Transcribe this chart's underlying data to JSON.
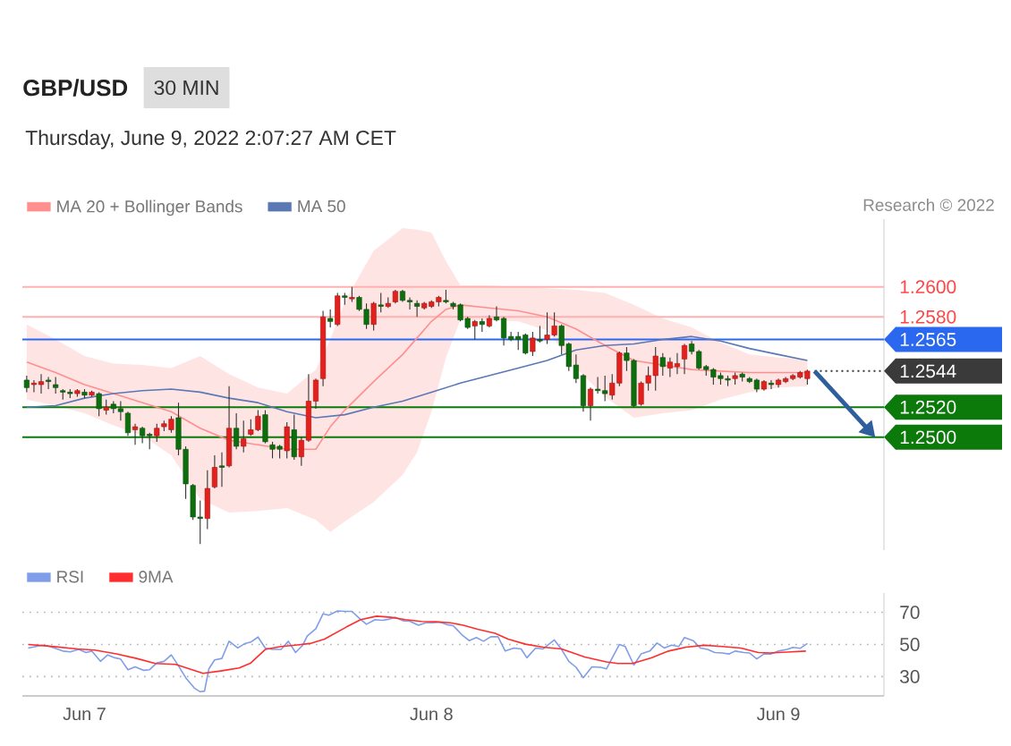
{
  "chart_data": [
    {
      "type": "candlestick",
      "title": "GBP/USD",
      "subtitle": "Thursday, June 9, 2022 2:07:27 AM CET",
      "annotations": [
        "30 MIN",
        "Research © 2022"
      ],
      "x": [
        "2022-06-06T20:00",
        "2022-06-06T20:30",
        "2022-06-06T21:00",
        "2022-06-06T21:30",
        "2022-06-06T22:00",
        "2022-06-06T22:30",
        "2022-06-06T23:00",
        "2022-06-06T23:30",
        "2022-06-07T00:00",
        "2022-06-07T00:30",
        "2022-06-07T01:00",
        "2022-06-07T01:30",
        "2022-06-07T02:00",
        "2022-06-07T02:30",
        "2022-06-07T03:00",
        "2022-06-07T03:30",
        "2022-06-07T04:00",
        "2022-06-07T04:30",
        "2022-06-07T05:00",
        "2022-06-07T05:30",
        "2022-06-07T06:00",
        "2022-06-07T06:30",
        "2022-06-07T07:00",
        "2022-06-07T07:30",
        "2022-06-07T08:00",
        "2022-06-07T08:30",
        "2022-06-07T09:00",
        "2022-06-07T09:30",
        "2022-06-07T10:00",
        "2022-06-07T10:30",
        "2022-06-07T11:00",
        "2022-06-07T11:30",
        "2022-06-07T12:00",
        "2022-06-07T12:30",
        "2022-06-07T13:00",
        "2022-06-07T13:30",
        "2022-06-07T14:00",
        "2022-06-07T14:30",
        "2022-06-07T15:00",
        "2022-06-07T15:30",
        "2022-06-07T16:00",
        "2022-06-07T16:30",
        "2022-06-07T17:00",
        "2022-06-07T17:30",
        "2022-06-07T18:00",
        "2022-06-07T18:30",
        "2022-06-07T19:00",
        "2022-06-07T19:30",
        "2022-06-07T20:00",
        "2022-06-07T20:30",
        "2022-06-07T21:00",
        "2022-06-07T21:30",
        "2022-06-07T22:00",
        "2022-06-07T22:30",
        "2022-06-07T23:00",
        "2022-06-07T23:30",
        "2022-06-08T00:00",
        "2022-06-08T00:30",
        "2022-06-08T01:00",
        "2022-06-08T01:30",
        "2022-06-08T02:00",
        "2022-06-08T02:30",
        "2022-06-08T03:00",
        "2022-06-08T03:30",
        "2022-06-08T04:00",
        "2022-06-08T04:30",
        "2022-06-08T05:00",
        "2022-06-08T05:30",
        "2022-06-08T06:00",
        "2022-06-08T06:30",
        "2022-06-08T07:00",
        "2022-06-08T07:30",
        "2022-06-08T08:00",
        "2022-06-08T08:30",
        "2022-06-08T09:00",
        "2022-06-08T09:30",
        "2022-06-08T10:00",
        "2022-06-08T10:30",
        "2022-06-08T11:00",
        "2022-06-08T11:30",
        "2022-06-08T12:00",
        "2022-06-08T12:30",
        "2022-06-08T13:00",
        "2022-06-08T13:30",
        "2022-06-08T14:00",
        "2022-06-08T14:30",
        "2022-06-08T15:00",
        "2022-06-08T15:30",
        "2022-06-08T16:00",
        "2022-06-08T16:30",
        "2022-06-08T17:00",
        "2022-06-08T17:30",
        "2022-06-08T18:00",
        "2022-06-08T18:30",
        "2022-06-08T19:00",
        "2022-06-08T19:30",
        "2022-06-08T20:00",
        "2022-06-08T20:30",
        "2022-06-08T21:00",
        "2022-06-08T21:30",
        "2022-06-08T22:00",
        "2022-06-08T22:30",
        "2022-06-08T23:00",
        "2022-06-08T23:30",
        "2022-06-09T00:00",
        "2022-06-09T00:30",
        "2022-06-09T01:00",
        "2022-06-09T01:30",
        "2022-06-09T02:00"
      ],
      "ohlc": [
        [
          1.2538,
          1.2541,
          1.253,
          1.2533
        ],
        [
          1.2535,
          1.2538,
          1.253,
          1.2536
        ],
        [
          1.2535,
          1.2542,
          1.2529,
          1.2537
        ],
        [
          1.2538,
          1.254,
          1.2532,
          1.2537
        ],
        [
          1.2535,
          1.254,
          1.2529,
          1.2533
        ],
        [
          1.2531,
          1.2532,
          1.2525,
          1.253
        ],
        [
          1.253,
          1.2532,
          1.2526,
          1.2529
        ],
        [
          1.2529,
          1.2532,
          1.2527,
          1.2531
        ],
        [
          1.253,
          1.2532,
          1.2526,
          1.2528
        ],
        [
          1.2528,
          1.2531,
          1.2527,
          1.253
        ],
        [
          1.2529,
          1.253,
          1.2514,
          1.2519
        ],
        [
          1.2518,
          1.2525,
          1.2515,
          1.252
        ],
        [
          1.2522,
          1.2524,
          1.2516,
          1.2519
        ],
        [
          1.2519,
          1.2524,
          1.2511,
          1.2517
        ],
        [
          1.2516,
          1.2517,
          1.2501,
          1.2503
        ],
        [
          1.2505,
          1.2509,
          1.2495,
          1.2507
        ],
        [
          1.2506,
          1.2507,
          1.2496,
          1.2501
        ],
        [
          1.2502,
          1.2503,
          1.2492,
          1.2501
        ],
        [
          1.2501,
          1.2509,
          1.2497,
          1.2506
        ],
        [
          1.2507,
          1.2511,
          1.2504,
          1.2509
        ],
        [
          1.2505,
          1.2514,
          1.2503,
          1.2512
        ],
        [
          1.2513,
          1.2523,
          1.2488,
          1.2492
        ],
        [
          1.2492,
          1.2494,
          1.2459,
          1.2469
        ],
        [
          1.2468,
          1.2469,
          1.2445,
          1.2447
        ],
        [
          1.2447,
          1.2458,
          1.2429,
          1.2446
        ],
        [
          1.2446,
          1.2478,
          1.2439,
          1.2466
        ],
        [
          1.2467,
          1.2488,
          1.2466,
          1.248
        ],
        [
          1.2481,
          1.249,
          1.2467,
          1.248
        ],
        [
          1.2481,
          1.2534,
          1.248,
          1.2506
        ],
        [
          1.2506,
          1.2516,
          1.2492,
          1.2494
        ],
        [
          1.2494,
          1.2511,
          1.249,
          1.2499
        ],
        [
          1.2502,
          1.2512,
          1.2501,
          1.2505
        ],
        [
          1.2505,
          1.2518,
          1.2504,
          1.2514
        ],
        [
          1.2515,
          1.2518,
          1.2496,
          1.2497
        ],
        [
          1.2495,
          1.2497,
          1.2486,
          1.2492
        ],
        [
          1.2494,
          1.2495,
          1.2486,
          1.2492
        ],
        [
          1.2491,
          1.251,
          1.2486,
          1.2507
        ],
        [
          1.2505,
          1.2515,
          1.2485,
          1.2487
        ],
        [
          1.2487,
          1.25,
          1.2481,
          1.2498
        ],
        [
          1.2498,
          1.2542,
          1.2497,
          1.2524
        ],
        [
          1.2524,
          1.2539,
          1.2519,
          1.2538
        ],
        [
          1.2539,
          1.2584,
          1.2534,
          1.258
        ],
        [
          1.2579,
          1.2585,
          1.2573,
          1.2577
        ],
        [
          1.2575,
          1.2596,
          1.2574,
          1.2594
        ],
        [
          1.2594,
          1.2596,
          1.2588,
          1.2593
        ],
        [
          1.2592,
          1.26,
          1.259,
          1.2593
        ],
        [
          1.2593,
          1.2594,
          1.2584,
          1.2585
        ],
        [
          1.2585,
          1.2589,
          1.2572,
          1.2575
        ],
        [
          1.2575,
          1.259,
          1.2571,
          1.2589
        ],
        [
          1.2588,
          1.2596,
          1.2583,
          1.2587
        ],
        [
          1.2587,
          1.2593,
          1.2586,
          1.2589
        ],
        [
          1.259,
          1.2598,
          1.2589,
          1.2597
        ],
        [
          1.2597,
          1.2598,
          1.259,
          1.2591
        ],
        [
          1.2591,
          1.2593,
          1.2585,
          1.259
        ],
        [
          1.2589,
          1.2591,
          1.258,
          1.2587
        ],
        [
          1.2586,
          1.259,
          1.2585,
          1.2589
        ],
        [
          1.2587,
          1.2591,
          1.2586,
          1.259
        ],
        [
          1.259,
          1.2594,
          1.2587,
          1.2593
        ],
        [
          1.2591,
          1.2598,
          1.2589,
          1.259
        ],
        [
          1.2589,
          1.259,
          1.2585,
          1.2587
        ],
        [
          1.2588,
          1.2589,
          1.2577,
          1.2578
        ],
        [
          1.2579,
          1.258,
          1.2572,
          1.2573
        ],
        [
          1.2574,
          1.2578,
          1.2565,
          1.2577
        ],
        [
          1.2577,
          1.2579,
          1.257,
          1.2575
        ],
        [
          1.2574,
          1.2581,
          1.2573,
          1.2579
        ],
        [
          1.258,
          1.2587,
          1.2577,
          1.2578
        ],
        [
          1.2579,
          1.258,
          1.2561,
          1.2566
        ],
        [
          1.2567,
          1.257,
          1.2564,
          1.2565
        ],
        [
          1.2567,
          1.257,
          1.2558,
          1.2565
        ],
        [
          1.2568,
          1.2569,
          1.2555,
          1.2556
        ],
        [
          1.2557,
          1.257,
          1.2554,
          1.2566
        ],
        [
          1.2565,
          1.2574,
          1.2563,
          1.2564
        ],
        [
          1.2565,
          1.2583,
          1.2562,
          1.2568
        ],
        [
          1.2568,
          1.2583,
          1.2567,
          1.2574
        ],
        [
          1.2574,
          1.2575,
          1.2555,
          1.2561
        ],
        [
          1.2562,
          1.2563,
          1.2544,
          1.2547
        ],
        [
          1.2548,
          1.2555,
          1.2536,
          1.2539
        ],
        [
          1.2541,
          1.2542,
          1.2517,
          1.2521
        ],
        [
          1.2521,
          1.2533,
          1.2511,
          1.2532
        ],
        [
          1.2532,
          1.254,
          1.2529,
          1.2531
        ],
        [
          1.2531,
          1.2541,
          1.2524,
          1.2529
        ],
        [
          1.2528,
          1.2542,
          1.2525,
          1.2536
        ],
        [
          1.2536,
          1.2557,
          1.2534,
          1.2556
        ],
        [
          1.2556,
          1.256,
          1.2544,
          1.2551
        ],
        [
          1.2551,
          1.2552,
          1.252,
          1.2521
        ],
        [
          1.2522,
          1.2537,
          1.2521,
          1.2536
        ],
        [
          1.2536,
          1.2547,
          1.2531,
          1.2541
        ],
        [
          1.2541,
          1.256,
          1.2531,
          1.2554
        ],
        [
          1.2553,
          1.2556,
          1.2541,
          1.2547
        ],
        [
          1.2546,
          1.2553,
          1.254,
          1.255
        ],
        [
          1.2547,
          1.2556,
          1.2542,
          1.2549
        ],
        [
          1.2552,
          1.2562,
          1.2542,
          1.2561
        ],
        [
          1.2562,
          1.2564,
          1.2555,
          1.2557
        ],
        [
          1.2557,
          1.2558,
          1.2545,
          1.2546
        ],
        [
          1.2547,
          1.2548,
          1.2541,
          1.2545
        ],
        [
          1.2545,
          1.2546,
          1.2535,
          1.254
        ],
        [
          1.2541,
          1.2543,
          1.2535,
          1.2539
        ],
        [
          1.2539,
          1.2541,
          1.2534,
          1.2538
        ],
        [
          1.2539,
          1.2543,
          1.2535,
          1.2541
        ],
        [
          1.2542,
          1.2543,
          1.2537,
          1.254
        ],
        [
          1.2539,
          1.254,
          1.2536,
          1.2537
        ],
        [
          1.2538,
          1.2539,
          1.253,
          1.2532
        ],
        [
          1.2532,
          1.2538,
          1.2531,
          1.2537
        ],
        [
          1.2536,
          1.2538,
          1.2532,
          1.2535
        ],
        [
          1.2535,
          1.2539,
          1.2533,
          1.2538
        ],
        [
          1.2537,
          1.254,
          1.2536,
          1.2539
        ],
        [
          1.2539,
          1.2542,
          1.2538,
          1.2541
        ],
        [
          1.254,
          1.2544,
          1.2539,
          1.2543
        ],
        [
          1.2539,
          1.2545,
          1.2535,
          1.2544
        ]
      ],
      "series": [
        {
          "name": "MA 20 + Bollinger Bands",
          "type": "line",
          "color": "#ff8f8f",
          "x": [
            "2022-06-06T20:00",
            "2022-06-06T22:00",
            "2022-06-07T00:00",
            "2022-06-07T02:00",
            "2022-06-07T04:00",
            "2022-06-07T06:00",
            "2022-06-07T08:00",
            "2022-06-07T10:00",
            "2022-06-07T12:00",
            "2022-06-07T14:00",
            "2022-06-07T16:00",
            "2022-06-07T17:00",
            "2022-06-07T18:00",
            "2022-06-07T20:00",
            "2022-06-07T22:00",
            "2022-06-07T23:00",
            "2022-06-08T00:00",
            "2022-06-08T01:00",
            "2022-06-08T02:00",
            "2022-06-08T04:00",
            "2022-06-08T06:00",
            "2022-06-08T08:00",
            "2022-06-08T10:00",
            "2022-06-08T12:00",
            "2022-06-08T14:00",
            "2022-06-08T16:00",
            "2022-06-08T18:00",
            "2022-06-08T20:00",
            "2022-06-08T22:00",
            "2022-06-09T00:00",
            "2022-06-09T02:00"
          ],
          "values": [
            1.255,
            1.2543,
            1.2535,
            1.2529,
            1.2523,
            1.2517,
            1.2506,
            1.2498,
            1.2495,
            1.2492,
            1.2492,
            1.2507,
            1.2518,
            1.2537,
            1.2555,
            1.2566,
            1.2577,
            1.2585,
            1.2588,
            1.2586,
            1.2584,
            1.258,
            1.2572,
            1.2561,
            1.2551,
            1.2548,
            1.2545,
            1.2544,
            1.2543,
            1.2543,
            1.2543
          ],
          "lower": [
            1.2525,
            1.2521,
            1.2516,
            1.2508,
            1.2501,
            1.2488,
            1.2459,
            1.245,
            1.2451,
            1.2453,
            1.2445,
            1.2437,
            1.2444,
            1.2457,
            1.2475,
            1.249,
            1.2517,
            1.2553,
            1.2578,
            1.2578,
            1.2577,
            1.2571,
            1.2546,
            1.2527,
            1.2513,
            1.2516,
            1.2518,
            1.2525,
            1.253,
            1.2533,
            1.2534
          ],
          "upper": [
            1.2575,
            1.2565,
            1.2554,
            1.2549,
            1.2548,
            1.2546,
            1.2554,
            1.2542,
            1.2533,
            1.2529,
            1.2545,
            1.2565,
            1.259,
            1.2624,
            1.2639,
            1.2638,
            1.2636,
            1.2617,
            1.2601,
            1.2601,
            1.26,
            1.2599,
            1.2598,
            1.2596,
            1.2588,
            1.2579,
            1.2573,
            1.2563,
            1.2555,
            1.2553,
            1.2552
          ]
        },
        {
          "name": "MA 50",
          "type": "line",
          "color": "#5a78b4",
          "x": [
            "2022-06-06T20:00",
            "2022-06-06T22:00",
            "2022-06-07T00:00",
            "2022-06-07T02:00",
            "2022-06-07T04:00",
            "2022-06-07T06:00",
            "2022-06-07T08:00",
            "2022-06-07T10:00",
            "2022-06-07T12:00",
            "2022-06-07T14:00",
            "2022-06-07T16:00",
            "2022-06-07T18:00",
            "2022-06-07T20:00",
            "2022-06-07T22:00",
            "2022-06-08T00:00",
            "2022-06-08T02:00",
            "2022-06-08T04:00",
            "2022-06-08T06:00",
            "2022-06-08T08:00",
            "2022-06-08T10:00",
            "2022-06-08T12:00",
            "2022-06-08T14:00",
            "2022-06-08T16:00",
            "2022-06-08T18:00",
            "2022-06-08T20:00",
            "2022-06-08T22:00",
            "2022-06-09T00:00",
            "2022-06-09T02:00"
          ],
          "values": [
            1.252,
            1.2521,
            1.2526,
            1.2529,
            1.2531,
            1.2532,
            1.253,
            1.2526,
            1.2523,
            1.2517,
            1.2513,
            1.2515,
            1.252,
            1.2524,
            1.253,
            1.2536,
            1.2541,
            1.2546,
            1.2551,
            1.2558,
            1.2561,
            1.2562,
            1.2565,
            1.2567,
            1.2564,
            1.2559,
            1.2555,
            1.2551
          ]
        }
      ],
      "xlim": [
        "2022-06-06T19:42",
        "2022-06-09T07:18"
      ],
      "ylim": [
        1.2425,
        1.2645
      ],
      "yticks": [
        {
          "value": 1.258,
          "label": "1.2580"
        },
        {
          "value": 1.26,
          "label": "1.2600"
        }
      ],
      "ref_lines": [
        {
          "axis": "y",
          "value": 1.26,
          "color": "#ffb0b0"
        },
        {
          "axis": "y",
          "value": 1.258,
          "color": "#ffb0b0"
        },
        {
          "axis": "y",
          "value": 1.2565,
          "label": "1.2565",
          "color": "#2a68f0"
        },
        {
          "axis": "y",
          "value": 1.2544,
          "label": "1.2544",
          "color": "#3a3a3a",
          "line_style": "dotted"
        },
        {
          "axis": "y",
          "value": 1.252,
          "label": "1.2520",
          "color": "#0b7a0b"
        },
        {
          "axis": "y",
          "value": 1.25,
          "label": "1.2500",
          "color": "#0b7a0b"
        }
      ],
      "legend": "top left",
      "tick_labels": "y"
    },
    {
      "type": "line",
      "series": [
        {
          "name": "RSI",
          "color": "#7f9de8",
          "x": [
            "2022-06-06T20:06",
            "2022-06-06T20:36",
            "2022-06-06T21:06",
            "2022-06-06T21:36",
            "2022-06-06T22:30",
            "2022-06-06T23:00",
            "2022-06-06T23:36",
            "2022-06-07T00:06",
            "2022-06-07T00:30",
            "2022-06-07T01:06",
            "2022-06-07T01:36",
            "2022-06-07T02:06",
            "2022-06-07T02:30",
            "2022-06-07T03:00",
            "2022-06-07T03:30",
            "2022-06-07T04:06",
            "2022-06-07T04:30",
            "2022-06-07T05:00",
            "2022-06-07T05:30",
            "2022-06-07T06:00",
            "2022-06-07T06:30",
            "2022-06-07T07:00",
            "2022-06-07T07:36",
            "2022-06-07T08:00",
            "2022-06-07T08:18",
            "2022-06-07T08:36",
            "2022-06-07T09:00",
            "2022-06-07T09:30",
            "2022-06-07T10:00",
            "2022-06-07T10:36",
            "2022-06-07T11:06",
            "2022-06-07T11:30",
            "2022-06-07T12:00",
            "2022-06-07T12:30",
            "2022-06-07T13:00",
            "2022-06-07T13:36",
            "2022-06-07T14:06",
            "2022-06-07T14:36",
            "2022-06-07T15:06",
            "2022-06-07T15:24",
            "2022-06-07T16:00",
            "2022-06-07T16:30",
            "2022-06-07T16:54",
            "2022-06-07T17:30",
            "2022-06-07T18:00",
            "2022-06-07T18:30",
            "2022-06-07T19:00",
            "2022-06-07T19:30",
            "2022-06-07T20:06",
            "2022-06-07T20:36",
            "2022-06-07T21:06",
            "2022-06-07T21:30",
            "2022-06-07T22:00",
            "2022-06-07T22:30",
            "2022-06-07T23:06",
            "2022-06-07T23:36",
            "2022-06-08T00:06",
            "2022-06-08T00:36",
            "2022-06-08T01:06",
            "2022-06-08T01:30",
            "2022-06-08T02:06",
            "2022-06-08T02:36",
            "2022-06-08T03:06",
            "2022-06-08T03:36",
            "2022-06-08T04:06",
            "2022-06-08T04:36",
            "2022-06-08T05:06",
            "2022-06-08T05:42",
            "2022-06-08T06:12",
            "2022-06-08T06:36",
            "2022-06-08T07:12",
            "2022-06-08T07:42",
            "2022-06-08T08:30",
            "2022-06-08T09:00",
            "2022-06-08T09:30",
            "2022-06-08T10:00",
            "2022-06-08T10:30",
            "2022-06-08T11:06",
            "2022-06-08T11:42",
            "2022-06-08T12:06",
            "2022-06-08T13:00",
            "2022-06-08T13:24",
            "2022-06-08T14:00",
            "2022-06-08T14:30",
            "2022-06-08T15:06",
            "2022-06-08T15:36",
            "2022-06-08T16:06",
            "2022-06-08T16:36",
            "2022-06-08T17:06",
            "2022-06-08T17:30",
            "2022-06-08T18:06",
            "2022-06-08T18:36",
            "2022-06-08T19:06",
            "2022-06-08T19:36",
            "2022-06-08T20:06",
            "2022-06-08T20:36",
            "2022-06-08T21:00",
            "2022-06-08T21:36",
            "2022-06-08T22:00",
            "2022-06-08T22:30",
            "2022-06-08T23:00",
            "2022-06-08T23:30",
            "2022-06-09T00:00",
            "2022-06-09T00:36",
            "2022-06-09T01:00",
            "2022-06-09T01:30",
            "2022-06-09T02:00"
          ],
          "values": [
            47.8,
            48.7,
            49.6,
            48.7,
            45.9,
            45.4,
            46.9,
            45.0,
            45.9,
            39.5,
            43.5,
            41.7,
            40.9,
            34.3,
            36.1,
            33.9,
            34.3,
            38.5,
            39.5,
            43.5,
            36.7,
            29.3,
            22.8,
            20.6,
            21.0,
            34.8,
            40.4,
            41.3,
            52.0,
            47.8,
            50.6,
            51.5,
            54.6,
            47.8,
            46.9,
            46.9,
            52.0,
            45.0,
            49.6,
            55.2,
            59.8,
            69.1,
            68.2,
            70.9,
            70.6,
            70.6,
            66.3,
            62.6,
            65.4,
            65.0,
            65.8,
            66.9,
            64.8,
            64.5,
            62.0,
            63.5,
            63.5,
            63.9,
            62.3,
            61.7,
            56.1,
            52.4,
            54.3,
            52.0,
            54.8,
            54.8,
            45.9,
            47.8,
            47.2,
            41.7,
            47.8,
            47.2,
            52.8,
            46.9,
            39.5,
            35.8,
            29.3,
            36.1,
            35.8,
            34.8,
            50.0,
            48.7,
            37.2,
            44.1,
            45.9,
            50.9,
            47.8,
            49.6,
            48.7,
            54.3,
            52.4,
            47.8,
            46.9,
            45.0,
            44.7,
            44.1,
            45.9,
            45.0,
            44.7,
            41.0,
            44.1,
            44.1,
            45.9,
            46.9,
            48.2,
            47.6,
            50.6
          ]
        },
        {
          "name": "9MA",
          "color": "#ff2d2d",
          "x": [
            "2022-06-06T20:06",
            "2022-06-06T21:24",
            "2022-06-06T23:30",
            "2022-06-07T00:42",
            "2022-06-07T02:12",
            "2022-06-07T03:36",
            "2022-06-07T04:54",
            "2022-06-07T06:18",
            "2022-06-07T08:12",
            "2022-06-07T09:24",
            "2022-06-07T10:42",
            "2022-06-07T11:30",
            "2022-06-07T12:30",
            "2022-06-07T13:36",
            "2022-06-07T14:36",
            "2022-06-07T15:36",
            "2022-06-07T16:36",
            "2022-06-07T18:06",
            "2022-06-07T19:06",
            "2022-06-07T20:12",
            "2022-06-07T21:12",
            "2022-06-07T22:12",
            "2022-06-07T23:18",
            "2022-06-08T00:18",
            "2022-06-08T01:18",
            "2022-06-08T02:12",
            "2022-06-08T03:12",
            "2022-06-08T04:24",
            "2022-06-08T05:18",
            "2022-06-08T06:30",
            "2022-06-08T07:42",
            "2022-06-08T09:00",
            "2022-06-08T10:36",
            "2022-06-08T12:06",
            "2022-06-08T12:54",
            "2022-06-08T13:54",
            "2022-06-08T15:12",
            "2022-06-08T16:24",
            "2022-06-08T17:36",
            "2022-06-08T18:54",
            "2022-06-08T20:06",
            "2022-06-08T21:24",
            "2022-06-08T22:36",
            "2022-06-08T23:24",
            "2022-06-09T00:54",
            "2022-06-09T01:54"
          ],
          "values": [
            50.0,
            49.1,
            47.2,
            46.5,
            44.1,
            41.3,
            38.2,
            37.6,
            32.0,
            33.5,
            35.4,
            38.5,
            46.9,
            48.7,
            49.6,
            50.6,
            53.3,
            60.8,
            65.4,
            67.6,
            66.9,
            65.4,
            64.3,
            64.1,
            63.5,
            62.0,
            59.5,
            57.0,
            53.3,
            50.2,
            48.3,
            47.2,
            42.2,
            39.1,
            38.2,
            38.2,
            41.7,
            45.9,
            48.3,
            49.5,
            48.7,
            47.8,
            45.0,
            44.7,
            45.4,
            45.9
          ]
        }
      ],
      "xlim": [
        "2022-06-06T19:42",
        "2022-06-09T07:18"
      ],
      "ylim": [
        18,
        82
      ],
      "xticks": [
        {
          "value": "2022-06-07",
          "label": "Jun 7"
        },
        {
          "value": "2022-06-08",
          "label": "Jun 8"
        },
        {
          "value": "2022-06-09",
          "label": "Jun 9"
        }
      ],
      "yticks": [
        30,
        50,
        70
      ],
      "grid": "y",
      "legend": "top left"
    }
  ]
}
